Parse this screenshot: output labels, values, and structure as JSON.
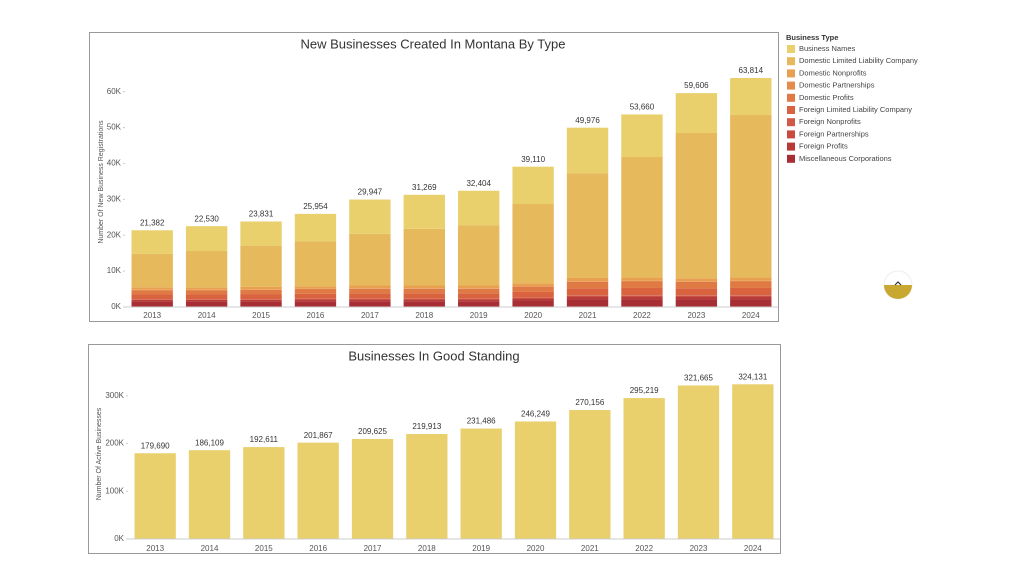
{
  "chart_data": [
    {
      "type": "stacked_bar",
      "title": "New Businesses Created In Montana By Type",
      "y_label": "Number Of New Business Registrations",
      "legend_title": "Business Type",
      "categories": [
        "2013",
        "2014",
        "2015",
        "2016",
        "2017",
        "2018",
        "2019",
        "2020",
        "2021",
        "2022",
        "2023",
        "2024"
      ],
      "ylim": [
        0,
        68000
      ],
      "yticks": [
        {
          "value": 0,
          "label": "0K"
        },
        {
          "value": 10000,
          "label": "10K"
        },
        {
          "value": 20000,
          "label": "20K"
        },
        {
          "value": 30000,
          "label": "30K"
        },
        {
          "value": 40000,
          "label": "40K"
        },
        {
          "value": 50000,
          "label": "50K"
        },
        {
          "value": 60000,
          "label": "60K"
        }
      ],
      "totals": [
        21382,
        22530,
        23831,
        25954,
        29947,
        31269,
        32404,
        39110,
        49976,
        53660,
        59606,
        63814
      ],
      "total_labels": [
        "21,382",
        "22,530",
        "23,831",
        "25,954",
        "29,947",
        "31,269",
        "32,404",
        "39,110",
        "49,976",
        "53,660",
        "59,606",
        "63,814"
      ],
      "series": [
        {
          "name": "Business Names",
          "color": "#e9d06c",
          "values": [
            6582,
            6930,
            6731,
            7654,
            9547,
            9469,
            9604,
            10410,
            12676,
            11860,
            11106,
            10314
          ]
        },
        {
          "name": "Domestic Limited Liability Company",
          "color": "#e6b95c",
          "values": [
            9300,
            10200,
            11500,
            12500,
            14400,
            15800,
            16800,
            22100,
            29200,
            33600,
            40500,
            45300
          ]
        },
        {
          "name": "Domestic Nonprofits",
          "color": "#e8a04f",
          "values": [
            700,
            600,
            700,
            700,
            800,
            800,
            800,
            800,
            900,
            900,
            800,
            900
          ]
        },
        {
          "name": "Domestic Partnerships",
          "color": "#e58c4b",
          "values": [
            100,
            100,
            100,
            100,
            100,
            100,
            100,
            100,
            200,
            200,
            200,
            200
          ]
        },
        {
          "name": "Domestic Profits",
          "color": "#e07a45",
          "values": [
            1200,
            1200,
            1200,
            1300,
            1300,
            1300,
            1300,
            1500,
            1800,
            1800,
            1800,
            1800
          ]
        },
        {
          "name": "Foreign Limited Liability Company",
          "color": "#d9623f",
          "values": [
            1300,
            1300,
            1400,
            1400,
            1500,
            1500,
            1500,
            1600,
            1900,
            2000,
            1900,
            2000
          ]
        },
        {
          "name": "Foreign Nonprofits",
          "color": "#cf5a48",
          "values": [
            100,
            100,
            100,
            100,
            100,
            100,
            100,
            100,
            200,
            200,
            200,
            200
          ]
        },
        {
          "name": "Foreign Partnerships",
          "color": "#c94a3e",
          "values": [
            100,
            100,
            100,
            100,
            100,
            100,
            100,
            100,
            200,
            200,
            200,
            200
          ]
        },
        {
          "name": "Foreign Profits",
          "color": "#b93a35",
          "values": [
            500,
            500,
            500,
            500,
            500,
            500,
            500,
            600,
            700,
            700,
            700,
            700
          ]
        },
        {
          "name": "Miscellaneous Corporations",
          "color": "#a82e36",
          "values": [
            1500,
            1500,
            1500,
            1600,
            1600,
            1600,
            1600,
            1800,
            2200,
            2200,
            2200,
            2200
          ]
        }
      ]
    },
    {
      "type": "bar",
      "title": "Businesses In Good Standing",
      "y_label": "Number Of Active Businesses",
      "categories": [
        "2013",
        "2014",
        "2015",
        "2016",
        "2017",
        "2018",
        "2019",
        "2020",
        "2021",
        "2022",
        "2023",
        "2024"
      ],
      "ylim": [
        0,
        352000
      ],
      "yticks": [
        {
          "value": 0,
          "label": "0K"
        },
        {
          "value": 100000,
          "label": "100K"
        },
        {
          "value": 200000,
          "label": "200K"
        },
        {
          "value": 300000,
          "label": "300K"
        }
      ],
      "color": "#e9d06c",
      "values": [
        179690,
        186109,
        192611,
        201867,
        209625,
        219913,
        231486,
        246249,
        270156,
        295219,
        321665,
        324131
      ],
      "value_labels": [
        "179,690",
        "186,109",
        "192,611",
        "201,867",
        "209,625",
        "219,913",
        "231,486",
        "246,249",
        "270,156",
        "295,219",
        "321,665",
        "324,131"
      ]
    }
  ]
}
